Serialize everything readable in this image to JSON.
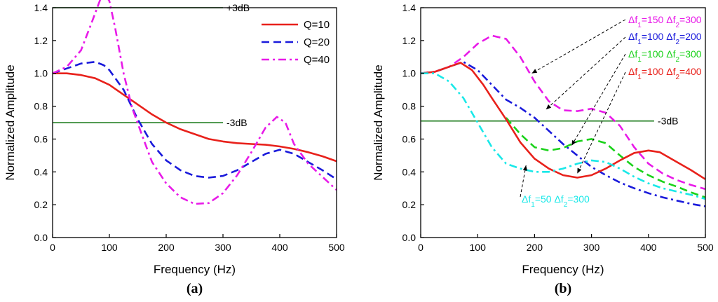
{
  "chart_data": [
    {
      "type": "line",
      "panel_label": "(a)",
      "title": "",
      "xlabel": "Frequency (Hz)",
      "ylabel": "Normalized Amplitude",
      "xlim": [
        0,
        500
      ],
      "ylim": [
        0,
        1.4
      ],
      "xticks": [
        "0",
        "100",
        "200",
        "300",
        "400",
        "500"
      ],
      "yticks": [
        "0.0",
        "0.2",
        "0.4",
        "0.6",
        "0.8",
        "1.0",
        "1.2",
        "1.4"
      ],
      "legend_position": "top-right",
      "reference_lines": [
        {
          "label": "+3dB",
          "y": 1.4,
          "x_from": 0,
          "x_to": 300,
          "color": "#1a7a1a"
        },
        {
          "label": "-3dB",
          "y": 0.7,
          "x_from": 0,
          "x_to": 300,
          "color": "#1a7a1a"
        }
      ],
      "series": [
        {
          "name": "Q=10",
          "color": "#e8211b",
          "dash": "solid",
          "points": [
            [
              0,
              1.0
            ],
            [
              25,
              1.0
            ],
            [
              50,
              0.99
            ],
            [
              75,
              0.97
            ],
            [
              100,
              0.93
            ],
            [
              125,
              0.87
            ],
            [
              150,
              0.81
            ],
            [
              175,
              0.75
            ],
            [
              200,
              0.7
            ],
            [
              225,
              0.66
            ],
            [
              250,
              0.63
            ],
            [
              275,
              0.6
            ],
            [
              300,
              0.585
            ],
            [
              325,
              0.575
            ],
            [
              350,
              0.57
            ],
            [
              375,
              0.565
            ],
            [
              400,
              0.555
            ],
            [
              425,
              0.54
            ],
            [
              450,
              0.52
            ],
            [
              475,
              0.495
            ],
            [
              500,
              0.465
            ]
          ]
        },
        {
          "name": "Q=20",
          "color": "#1a1adb",
          "dash": "dash",
          "points": [
            [
              0,
              1.0
            ],
            [
              25,
              1.03
            ],
            [
              50,
              1.06
            ],
            [
              75,
              1.07
            ],
            [
              90,
              1.05
            ],
            [
              100,
              1.02
            ],
            [
              125,
              0.9
            ],
            [
              150,
              0.72
            ],
            [
              175,
              0.57
            ],
            [
              200,
              0.47
            ],
            [
              225,
              0.41
            ],
            [
              250,
              0.375
            ],
            [
              275,
              0.365
            ],
            [
              300,
              0.375
            ],
            [
              325,
              0.41
            ],
            [
              350,
              0.46
            ],
            [
              375,
              0.51
            ],
            [
              400,
              0.535
            ],
            [
              425,
              0.51
            ],
            [
              450,
              0.46
            ],
            [
              475,
              0.41
            ],
            [
              500,
              0.355
            ]
          ]
        },
        {
          "name": "Q=40",
          "color": "#e81ae8",
          "dash": "dashdot",
          "points": [
            [
              0,
              1.0
            ],
            [
              25,
              1.04
            ],
            [
              50,
              1.14
            ],
            [
              70,
              1.32
            ],
            [
              85,
              1.46
            ],
            [
              93,
              1.48
            ],
            [
              100,
              1.44
            ],
            [
              110,
              1.28
            ],
            [
              125,
              1.0
            ],
            [
              140,
              0.79
            ],
            [
              160,
              0.6
            ],
            [
              175,
              0.46
            ],
            [
              200,
              0.33
            ],
            [
              225,
              0.245
            ],
            [
              250,
              0.205
            ],
            [
              275,
              0.21
            ],
            [
              300,
              0.27
            ],
            [
              325,
              0.38
            ],
            [
              350,
              0.52
            ],
            [
              375,
              0.67
            ],
            [
              395,
              0.735
            ],
            [
              410,
              0.7
            ],
            [
              425,
              0.57
            ],
            [
              450,
              0.45
            ],
            [
              475,
              0.37
            ],
            [
              500,
              0.29
            ]
          ]
        }
      ]
    },
    {
      "type": "line",
      "panel_label": "(b)",
      "title": "",
      "xlabel": "Frequency (Hz)",
      "ylabel": "Normalized Amplitude",
      "xlim": [
        0,
        500
      ],
      "ylim": [
        0,
        1.4
      ],
      "xticks": [
        "0",
        "100",
        "200",
        "300",
        "400",
        "500"
      ],
      "yticks": [
        "0.0",
        "0.2",
        "0.4",
        "0.6",
        "0.8",
        "1.0",
        "1.2",
        "1.4"
      ],
      "reference_lines": [
        {
          "label": "-3dB",
          "y": 0.71,
          "x_from": 0,
          "x_to": 410,
          "color": "#1a7a1a"
        }
      ],
      "series": [
        {
          "name": "Δf1=150 Δf2=300",
          "color": "#e81ae8",
          "dash": "dash",
          "label_lines": [
            "Δf",
            "1",
            "=150 Δf",
            "2",
            "=300"
          ],
          "points": [
            [
              0,
              1.0
            ],
            [
              25,
              1.01
            ],
            [
              50,
              1.04
            ],
            [
              75,
              1.1
            ],
            [
              100,
              1.18
            ],
            [
              125,
              1.23
            ],
            [
              150,
              1.21
            ],
            [
              175,
              1.1
            ],
            [
              200,
              0.95
            ],
            [
              225,
              0.83
            ],
            [
              250,
              0.775
            ],
            [
              275,
              0.77
            ],
            [
              300,
              0.785
            ],
            [
              325,
              0.76
            ],
            [
              350,
              0.68
            ],
            [
              375,
              0.55
            ],
            [
              400,
              0.45
            ],
            [
              425,
              0.39
            ],
            [
              450,
              0.35
            ],
            [
              475,
              0.32
            ],
            [
              500,
              0.295
            ]
          ]
        },
        {
          "name": "Δf1=100 Δf2=200",
          "color": "#1a1adb",
          "dash": "dashdot",
          "points": [
            [
              0,
              1.0
            ],
            [
              25,
              1.01
            ],
            [
              50,
              1.04
            ],
            [
              75,
              1.07
            ],
            [
              100,
              1.02
            ],
            [
              125,
              0.93
            ],
            [
              150,
              0.84
            ],
            [
              175,
              0.79
            ],
            [
              200,
              0.73
            ],
            [
              225,
              0.65
            ],
            [
              250,
              0.57
            ],
            [
              275,
              0.5
            ],
            [
              300,
              0.43
            ],
            [
              325,
              0.38
            ],
            [
              350,
              0.335
            ],
            [
              375,
              0.3
            ],
            [
              400,
              0.27
            ],
            [
              425,
              0.245
            ],
            [
              450,
              0.225
            ],
            [
              475,
              0.205
            ],
            [
              500,
              0.19
            ]
          ]
        },
        {
          "name": "Δf1=100 Δf2=300",
          "color": "#1ad21a",
          "dash": "dash",
          "points": [
            [
              150,
              0.73
            ],
            [
              175,
              0.63
            ],
            [
              200,
              0.55
            ],
            [
              225,
              0.53
            ],
            [
              250,
              0.545
            ],
            [
              275,
              0.585
            ],
            [
              300,
              0.6
            ],
            [
              325,
              0.575
            ],
            [
              350,
              0.5
            ],
            [
              375,
              0.43
            ],
            [
              400,
              0.38
            ],
            [
              425,
              0.34
            ],
            [
              450,
              0.31
            ],
            [
              475,
              0.275
            ],
            [
              500,
              0.245
            ]
          ]
        },
        {
          "name": "Δf1=100 Δf2=400",
          "color": "#e8211b",
          "dash": "solid",
          "points": [
            [
              0,
              1.0
            ],
            [
              25,
              1.01
            ],
            [
              50,
              1.04
            ],
            [
              70,
              1.065
            ],
            [
              90,
              1.02
            ],
            [
              110,
              0.93
            ],
            [
              125,
              0.85
            ],
            [
              150,
              0.72
            ],
            [
              175,
              0.58
            ],
            [
              200,
              0.48
            ],
            [
              225,
              0.42
            ],
            [
              250,
              0.38
            ],
            [
              275,
              0.365
            ],
            [
              300,
              0.38
            ],
            [
              325,
              0.42
            ],
            [
              350,
              0.47
            ],
            [
              375,
              0.515
            ],
            [
              400,
              0.53
            ],
            [
              420,
              0.52
            ],
            [
              450,
              0.46
            ],
            [
              475,
              0.41
            ],
            [
              500,
              0.355
            ]
          ]
        },
        {
          "name": "Δf1=50 Δf2=300",
          "color": "#1ae8e8",
          "dash": "dashdot",
          "points": [
            [
              0,
              1.0
            ],
            [
              25,
              1.0
            ],
            [
              50,
              0.95
            ],
            [
              75,
              0.85
            ],
            [
              100,
              0.7
            ],
            [
              125,
              0.55
            ],
            [
              150,
              0.45
            ],
            [
              175,
              0.42
            ],
            [
              200,
              0.4
            ],
            [
              225,
              0.4
            ],
            [
              250,
              0.42
            ],
            [
              275,
              0.45
            ],
            [
              300,
              0.47
            ],
            [
              325,
              0.46
            ],
            [
              350,
              0.42
            ],
            [
              375,
              0.37
            ],
            [
              400,
              0.33
            ],
            [
              425,
              0.3
            ],
            [
              450,
              0.28
            ],
            [
              475,
              0.26
            ],
            [
              500,
              0.235
            ]
          ]
        }
      ],
      "annotations": [
        {
          "text": "Δf1=150 Δf2=300",
          "color": "#e81ae8",
          "arrow_to": [
            195,
            1.0
          ]
        },
        {
          "text": "Δf1=100 Δf2=200",
          "color": "#1a1adb",
          "arrow_to": [
            220,
            0.78
          ]
        },
        {
          "text": "Δf1=100 Δf2=300",
          "color": "#1ad21a",
          "arrow_to": [
            265,
            0.56
          ]
        },
        {
          "text": "Δf1=100 Δf2=400",
          "color": "#e8211b",
          "arrow_to": [
            275,
            0.39
          ]
        },
        {
          "text": "Δf1=50 Δf2=300",
          "color": "#1ae8e8",
          "arrow_to": [
            185,
            0.44
          ]
        }
      ]
    }
  ]
}
